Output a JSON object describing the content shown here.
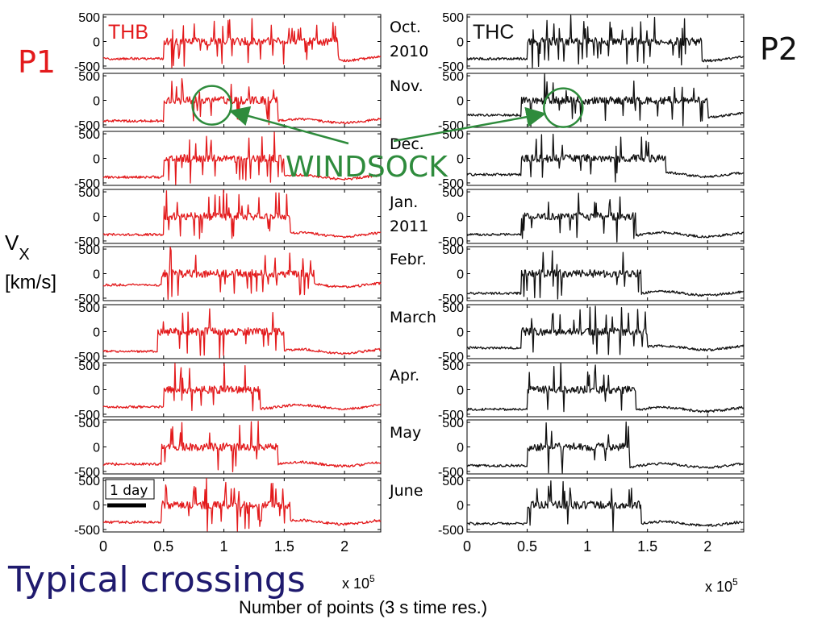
{
  "slide": {
    "title": "Typical crossings",
    "title_color": "#1f1a6e",
    "ylabel_line1": "V",
    "ylabel_sub": "X",
    "ylabel_line2": "[km/s]",
    "xlabel": "Number of points (3 s time res.)",
    "x_multiplier_base": "x 10",
    "x_multiplier_exp": "5",
    "windsock_label": "WINDSOCK",
    "windsock_color": "#2e8b3c",
    "scale_bar_label": "1 day"
  },
  "probes": [
    {
      "panel_label": "P1",
      "name": "THB",
      "color": "#e31a1c",
      "label_color": "#e31a1c"
    },
    {
      "panel_label": "P2",
      "name": "THC",
      "color": "#111111",
      "label_color": "#111111"
    }
  ],
  "months": [
    {
      "line1": "Oct.",
      "line2": "2010"
    },
    {
      "line1": "Nov.",
      "line2": ""
    },
    {
      "line1": "Dec.",
      "line2": ""
    },
    {
      "line1": "Jan.",
      "line2": "2011"
    },
    {
      "line1": "Febr.",
      "line2": ""
    },
    {
      "line1": "March",
      "line2": ""
    },
    {
      "line1": "Apr.",
      "line2": ""
    },
    {
      "line1": "May",
      "line2": ""
    },
    {
      "line1": "June",
      "line2": ""
    }
  ],
  "chart_data": {
    "type": "line",
    "xlim": [
      0,
      230000
    ],
    "ylim": [
      -550,
      550
    ],
    "x_ticks": [
      0,
      0.5,
      1,
      1.5,
      2
    ],
    "x_tick_labels": [
      "0",
      "0.5",
      "1",
      "1.5",
      "2"
    ],
    "y_ticks": [
      500,
      0,
      -500
    ],
    "y_tick_labels": [
      "500",
      "0",
      "-500"
    ],
    "grid": false,
    "series": [
      {
        "name": "THB",
        "panels": [
          {
            "baseline": -350,
            "step_up": 50000,
            "step_down": 195000,
            "level": 0,
            "spike": 0.8
          },
          {
            "baseline": -420,
            "step_up": 50000,
            "step_down": 145000,
            "level": 0,
            "spike": 0.5
          },
          {
            "baseline": -380,
            "step_up": 50000,
            "step_down": 150000,
            "level": 0,
            "spike": 0.6
          },
          {
            "baseline": -370,
            "step_up": 50000,
            "step_down": 155000,
            "level": 0,
            "spike": 0.6
          },
          {
            "baseline": -230,
            "step_up": 48000,
            "step_down": 175000,
            "level": 0,
            "spike": 0.7
          },
          {
            "baseline": -400,
            "step_up": 45000,
            "step_down": 150000,
            "level": 0,
            "spike": 0.6
          },
          {
            "baseline": -350,
            "step_up": 50000,
            "step_down": 130000,
            "level": 0,
            "spike": 0.6
          },
          {
            "baseline": -350,
            "step_up": 48000,
            "step_down": 145000,
            "level": 0,
            "spike": 0.5
          },
          {
            "baseline": -350,
            "step_up": 48000,
            "step_down": 155000,
            "level": 0,
            "spike": 0.7
          }
        ]
      },
      {
        "name": "THC",
        "panels": [
          {
            "baseline": -350,
            "step_up": 50000,
            "step_down": 195000,
            "level": 0,
            "spike": 0.8
          },
          {
            "baseline": -300,
            "step_up": 45000,
            "step_down": 200000,
            "level": 0,
            "spike": 0.6
          },
          {
            "baseline": -330,
            "step_up": 45000,
            "step_down": 165000,
            "level": 0,
            "spike": 0.6
          },
          {
            "baseline": -370,
            "step_up": 45000,
            "step_down": 140000,
            "level": 0,
            "spike": 0.7
          },
          {
            "baseline": -400,
            "step_up": 45000,
            "step_down": 145000,
            "level": 0,
            "spike": 0.6
          },
          {
            "baseline": -330,
            "step_up": 45000,
            "step_down": 150000,
            "level": 0,
            "spike": 0.6
          },
          {
            "baseline": -400,
            "step_up": 50000,
            "step_down": 140000,
            "level": 0,
            "spike": 0.6
          },
          {
            "baseline": -380,
            "step_up": 50000,
            "step_down": 135000,
            "level": 0,
            "spike": 0.5
          },
          {
            "baseline": -380,
            "step_up": 50000,
            "step_down": 145000,
            "level": 0,
            "spike": 0.6
          }
        ]
      }
    ],
    "annotations": [
      {
        "text": "WINDSOCK",
        "probe": "THB",
        "month": "Nov.",
        "x": 90000,
        "y": -100
      },
      {
        "text": "WINDSOCK",
        "probe": "THC",
        "month": "Nov.",
        "x": 80000,
        "y": -150
      }
    ]
  }
}
